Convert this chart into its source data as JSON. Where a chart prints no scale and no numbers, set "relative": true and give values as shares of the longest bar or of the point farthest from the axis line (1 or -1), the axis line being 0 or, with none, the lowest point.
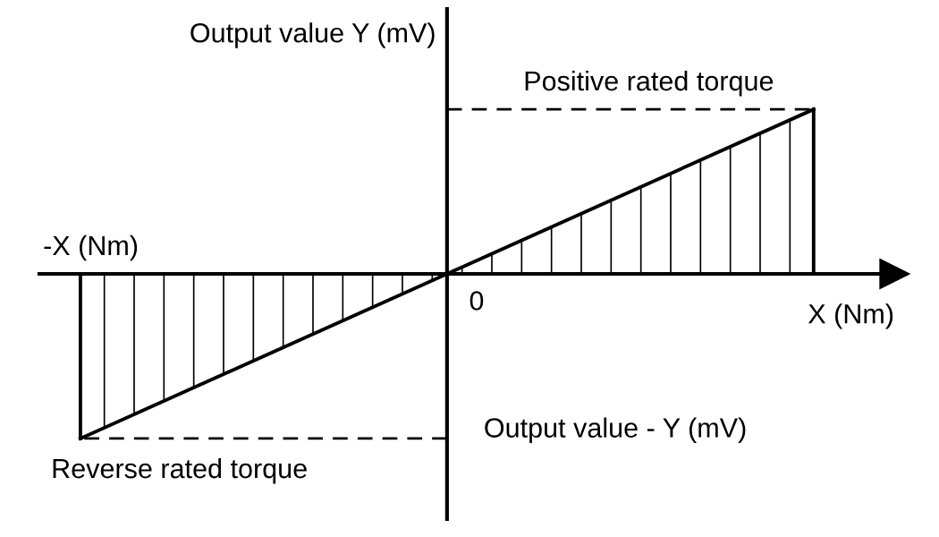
{
  "chart_data": {
    "type": "line",
    "relative": true,
    "ylabel": "Output value Y (mV)",
    "categories": [
      null,
      null,
      null
    ],
    "series": [
      {
        "color": "#000000",
        "values": [
          -1,
          0,
          1
        ]
      }
    ],
    "ref_lines": [
      {
        "axis": "y",
        "value": 1,
        "label": "Positive rated torque",
        "line_style": "dashed"
      },
      {
        "axis": "y",
        "value": -1,
        "label": "Reverse rated torque",
        "line_style": "dashed"
      }
    ],
    "annotations": [
      "-X (Nm)",
      "Output value - Y (mV)",
      "0",
      "X (Nm)"
    ],
    "legend": false
  }
}
